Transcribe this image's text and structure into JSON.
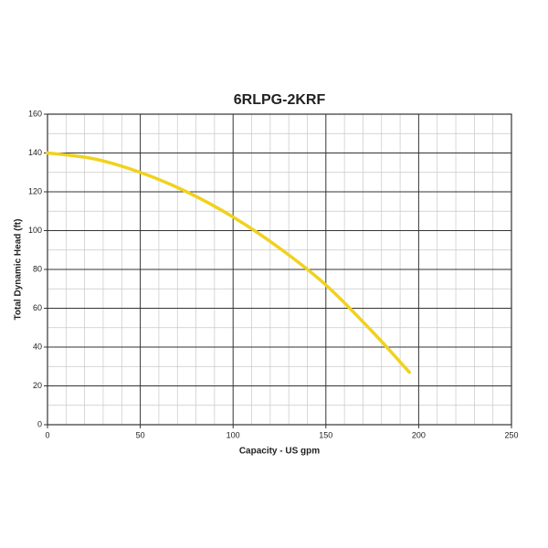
{
  "chart_data": {
    "type": "line",
    "title": "6RLPG-2KRF",
    "x_label": "Capacity - US gpm",
    "y_label": "Total Dynamic Head (ft)",
    "series": [
      {
        "x": [
          0,
          25,
          50,
          75,
          100,
          125,
          150,
          175,
          195
        ],
        "values": [
          140,
          137,
          130,
          120,
          107,
          91,
          72,
          48,
          27
        ],
        "color": "#f0d21e"
      }
    ],
    "xlim": [
      0,
      250
    ],
    "xticks": [
      0,
      50,
      100,
      150,
      200,
      250
    ],
    "ylim": [
      0,
      160
    ],
    "yticks": [
      0,
      20,
      40,
      60,
      80,
      100,
      120,
      140,
      160
    ],
    "grid": true,
    "minor_grid": true
  }
}
